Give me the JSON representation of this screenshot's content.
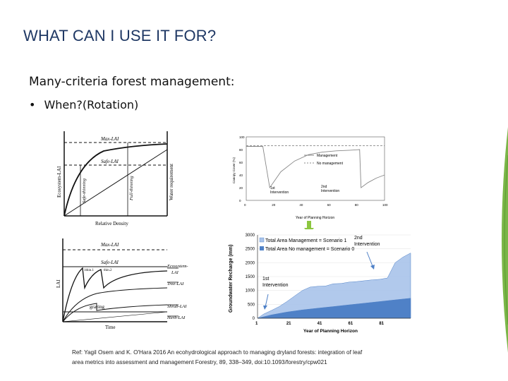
{
  "slide": {
    "title": "WHAT CAN I USE IT FOR?",
    "subtitle": "Many-criteria forest management:",
    "bullet": "When?(Rotation)",
    "reference_line1": "Ref: Yagil Osem and K. O'Hara  2016 An ecohydrological approach to managing dryland forests: integration of leaf",
    "reference_line2": "area metrics into assessment and management Forestry, 89, 338–349, doi:10.1093/forestry/cpw021"
  },
  "fig_top_left": {
    "max_lai": "Max-LAI",
    "safe_lai": "Safe-LAI",
    "y_label": "Ecosystem-LAI",
    "y2_label": "Water requirement",
    "x_label": "Relative Density",
    "safe_thinning": "Safe-thinning",
    "full_thinning": "Full-thinning"
  },
  "fig_bottom_left": {
    "max_lai": "Max-LAI",
    "safe_lai": "Safe-LAI",
    "y_label": "LAI",
    "x_label": "Time",
    "thin1": "1thin.1",
    "thin2": "thin.2",
    "grazing": "grazing",
    "ecosystem_lai": "Ecosystem-",
    "ecosystem_lai2": "LAI",
    "tree_lai": "Tree-LAI",
    "shrub_lai": "Shrub-LAI",
    "herb_lai": "Herb-LAI"
  },
  "chart_data": [
    {
      "type": "line",
      "ylabel": "Canopy Cover (%)",
      "xlabel": "Year of Planning Horizon",
      "x_ticks": [
        0,
        20,
        40,
        60,
        80,
        100
      ],
      "y_ticks": [
        0,
        20,
        40,
        60,
        80,
        100
      ],
      "xlim": [
        0,
        100
      ],
      "ylim": [
        0,
        100
      ],
      "series": [
        {
          "name": "Management",
          "style": "solid",
          "x": [
            0,
            12,
            17,
            25,
            35,
            45,
            55,
            65,
            75,
            82,
            83,
            88,
            94,
            100
          ],
          "y": [
            85,
            85,
            20,
            45,
            62,
            72,
            76,
            78,
            79,
            80,
            20,
            28,
            35,
            40
          ]
        },
        {
          "name": "No management",
          "style": "dashed",
          "x": [
            0,
            100
          ],
          "y": [
            86,
            86
          ]
        }
      ],
      "annotations": [
        "1st Intervention",
        "2nd Intervention"
      ]
    },
    {
      "type": "area",
      "ylabel": "Groundwater Recharge (mm)",
      "xlabel": "Year of Planning Horizon",
      "x_ticks": [
        1,
        21,
        41,
        61,
        81
      ],
      "y_ticks": [
        0,
        500,
        1000,
        1500,
        2000,
        2500,
        3000
      ],
      "xlim": [
        1,
        100
      ],
      "ylim": [
        0,
        3000
      ],
      "series": [
        {
          "name": "Total Area Management = Scenario 1",
          "color": "#a9c3ea",
          "x": [
            1,
            5,
            10,
            15,
            20,
            25,
            30,
            35,
            40,
            45,
            50,
            55,
            60,
            65,
            70,
            75,
            80,
            85,
            90,
            95,
            100
          ],
          "y": [
            0,
            150,
            280,
            420,
            600,
            800,
            1000,
            1120,
            1150,
            1160,
            1240,
            1250,
            1300,
            1320,
            1350,
            1380,
            1400,
            1450,
            2000,
            2200,
            2350
          ]
        },
        {
          "name": "Total Area No management = Scenario 0",
          "color": "#4f81c7",
          "x": [
            1,
            10,
            20,
            30,
            40,
            50,
            60,
            70,
            80,
            90,
            100
          ],
          "y": [
            0,
            120,
            220,
            300,
            360,
            420,
            480,
            540,
            600,
            660,
            720
          ]
        }
      ],
      "annotations": [
        "1st Intervention",
        "2nd Intervention"
      ]
    }
  ],
  "colors": {
    "title": "#1f3864",
    "arrow": "#8cc63f",
    "area_light": "#a9c3ea",
    "area_dark": "#4f81c7",
    "leaf": "#7ab648"
  }
}
